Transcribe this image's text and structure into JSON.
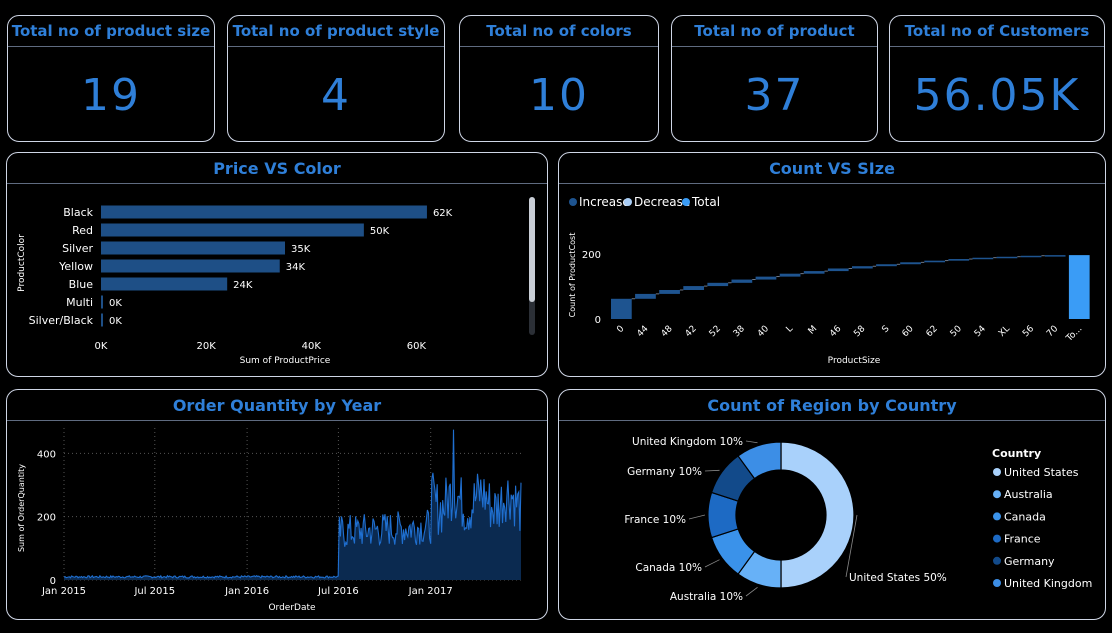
{
  "kpis": [
    {
      "title": "Total no of product size",
      "value": "19"
    },
    {
      "title": "Total no of product style",
      "value": "4"
    },
    {
      "title": "Total no of colors",
      "value": "10"
    },
    {
      "title": "Total no of product",
      "value": "37"
    },
    {
      "title": "Total no of Customers",
      "value": "56.05K"
    }
  ],
  "colors": {
    "accent": "#2f7fd8",
    "bar": "#1e4f86",
    "waterfall_increase": "#1e5490",
    "waterfall_total": "#3a9cf6",
    "line": "#1f6fd0",
    "area": "#0b2a50",
    "border": "#cfd6e6"
  },
  "panels": {
    "price_color": {
      "title": "Price VS Color"
    },
    "count_size": {
      "title": "Count VS SIze"
    },
    "order_qty": {
      "title": "Order Quantity by Year"
    },
    "region_country": {
      "title": "Count of Region by Country"
    }
  },
  "chart_data": [
    {
      "type": "bar",
      "orientation": "horizontal",
      "title": "Price VS Color",
      "xlabel": "Sum of ProductPrice",
      "ylabel": "ProductColor",
      "categories": [
        "Black",
        "Red",
        "Silver",
        "Yellow",
        "Blue",
        "Multi",
        "Silver/Black"
      ],
      "values": [
        62000,
        50000,
        35000,
        34000,
        24000,
        0,
        0
      ],
      "data_labels": [
        "62K",
        "50K",
        "35K",
        "34K",
        "24K",
        "0K",
        "0K"
      ],
      "x_ticks": [
        "0K",
        "20K",
        "40K",
        "60K"
      ],
      "xlim": [
        0,
        70000
      ]
    },
    {
      "type": "bar",
      "subtype": "waterfall",
      "title": "Count VS SIze",
      "xlabel": "ProductSize",
      "ylabel": "Count of ProductCost",
      "legend": [
        "Increase",
        "Decrease",
        "Total"
      ],
      "legend_colors": [
        "#1e5490",
        "#a9cdf5",
        "#3a9cf6"
      ],
      "categories": [
        "0",
        "44",
        "48",
        "42",
        "52",
        "38",
        "40",
        "L",
        "M",
        "46",
        "58",
        "S",
        "60",
        "62",
        "50",
        "54",
        "XL",
        "56",
        "70",
        "To..."
      ],
      "increments": [
        62,
        15,
        12,
        12,
        10,
        10,
        9,
        9,
        8,
        8,
        7,
        6,
        6,
        5,
        5,
        4,
        3,
        3,
        2
      ],
      "total": 196,
      "y_ticks": [
        "0",
        "200"
      ],
      "ylim": [
        0,
        270
      ]
    },
    {
      "type": "area",
      "title": "Order Quantity by Year",
      "xlabel": "OrderDate",
      "ylabel": "Sum of OrderQuantity",
      "x_ticks": [
        "Jan 2015",
        "Jul 2015",
        "Jan 2016",
        "Jul 2016",
        "Jan 2017"
      ],
      "y_ticks": [
        "0",
        "200",
        "400"
      ],
      "ylim": [
        0,
        480
      ],
      "x_range": [
        "2015-01-01",
        "2017-06-30"
      ],
      "segments": [
        {
          "from": "2015-01-01",
          "to": "2016-06-30",
          "level": 10
        },
        {
          "from": "2016-07-01",
          "to": "2016-12-31",
          "level": 160
        },
        {
          "from": "2017-01-01",
          "to": "2017-06-30",
          "level": 250
        }
      ],
      "peak": {
        "date": "2017-02-15",
        "value": 475
      }
    },
    {
      "type": "pie",
      "subtype": "donut",
      "title": "Count of Region by Country",
      "legend_title": "Country",
      "labels": [
        "United States",
        "Australia",
        "Canada",
        "France",
        "Germany",
        "United Kingdom"
      ],
      "values": [
        50,
        10,
        10,
        10,
        10,
        10
      ],
      "data_labels": [
        "United States 50%",
        "Australia 10%",
        "Canada 10%",
        "France 10%",
        "Germany 10%",
        "United Kingdom 10%"
      ],
      "colors": [
        "#a9d1fb",
        "#67b1f7",
        "#3a92ea",
        "#1d6ac4",
        "#124a8a",
        "#3c8ee6"
      ]
    }
  ]
}
